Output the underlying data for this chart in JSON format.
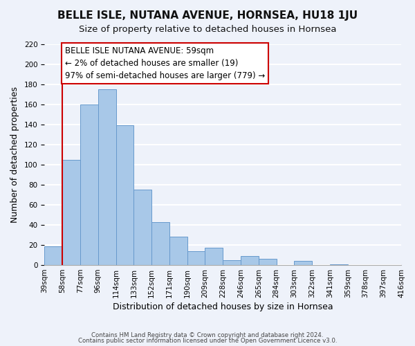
{
  "title": "BELLE ISLE, NUTANA AVENUE, HORNSEA, HU18 1JU",
  "subtitle": "Size of property relative to detached houses in Hornsea",
  "xlabel": "Distribution of detached houses by size in Hornsea",
  "ylabel": "Number of detached properties",
  "bar_values": [
    19,
    105,
    160,
    175,
    139,
    75,
    43,
    28,
    14,
    17,
    5,
    9,
    6,
    0,
    4,
    0,
    1,
    0,
    0,
    0
  ],
  "bar_labels": [
    "39sqm",
    "58sqm",
    "77sqm",
    "96sqm",
    "114sqm",
    "133sqm",
    "152sqm",
    "171sqm",
    "190sqm",
    "209sqm",
    "228sqm",
    "246sqm",
    "265sqm",
    "284sqm",
    "303sqm",
    "322sqm",
    "341sqm",
    "359sqm",
    "378sqm",
    "397sqm",
    "416sqm"
  ],
  "bar_color": "#a8c8e8",
  "bar_edge_color": "#6699cc",
  "vline_x": 1,
  "vline_color": "#cc0000",
  "annotation_text": "BELLE ISLE NUTANA AVENUE: 59sqm\n← 2% of detached houses are smaller (19)\n97% of semi-detached houses are larger (779) →",
  "annotation_box_edge": "#cc0000",
  "ylim": [
    0,
    220
  ],
  "yticks": [
    0,
    20,
    40,
    60,
    80,
    100,
    120,
    140,
    160,
    180,
    200,
    220
  ],
  "footer1": "Contains HM Land Registry data © Crown copyright and database right 2024.",
  "footer2": "Contains public sector information licensed under the Open Government Licence v3.0.",
  "bg_color": "#eef2fa",
  "grid_color": "#ffffff",
  "title_fontsize": 11,
  "subtitle_fontsize": 9.5,
  "axis_label_fontsize": 9,
  "tick_fontsize": 7.5,
  "annotation_fontsize": 8.5
}
